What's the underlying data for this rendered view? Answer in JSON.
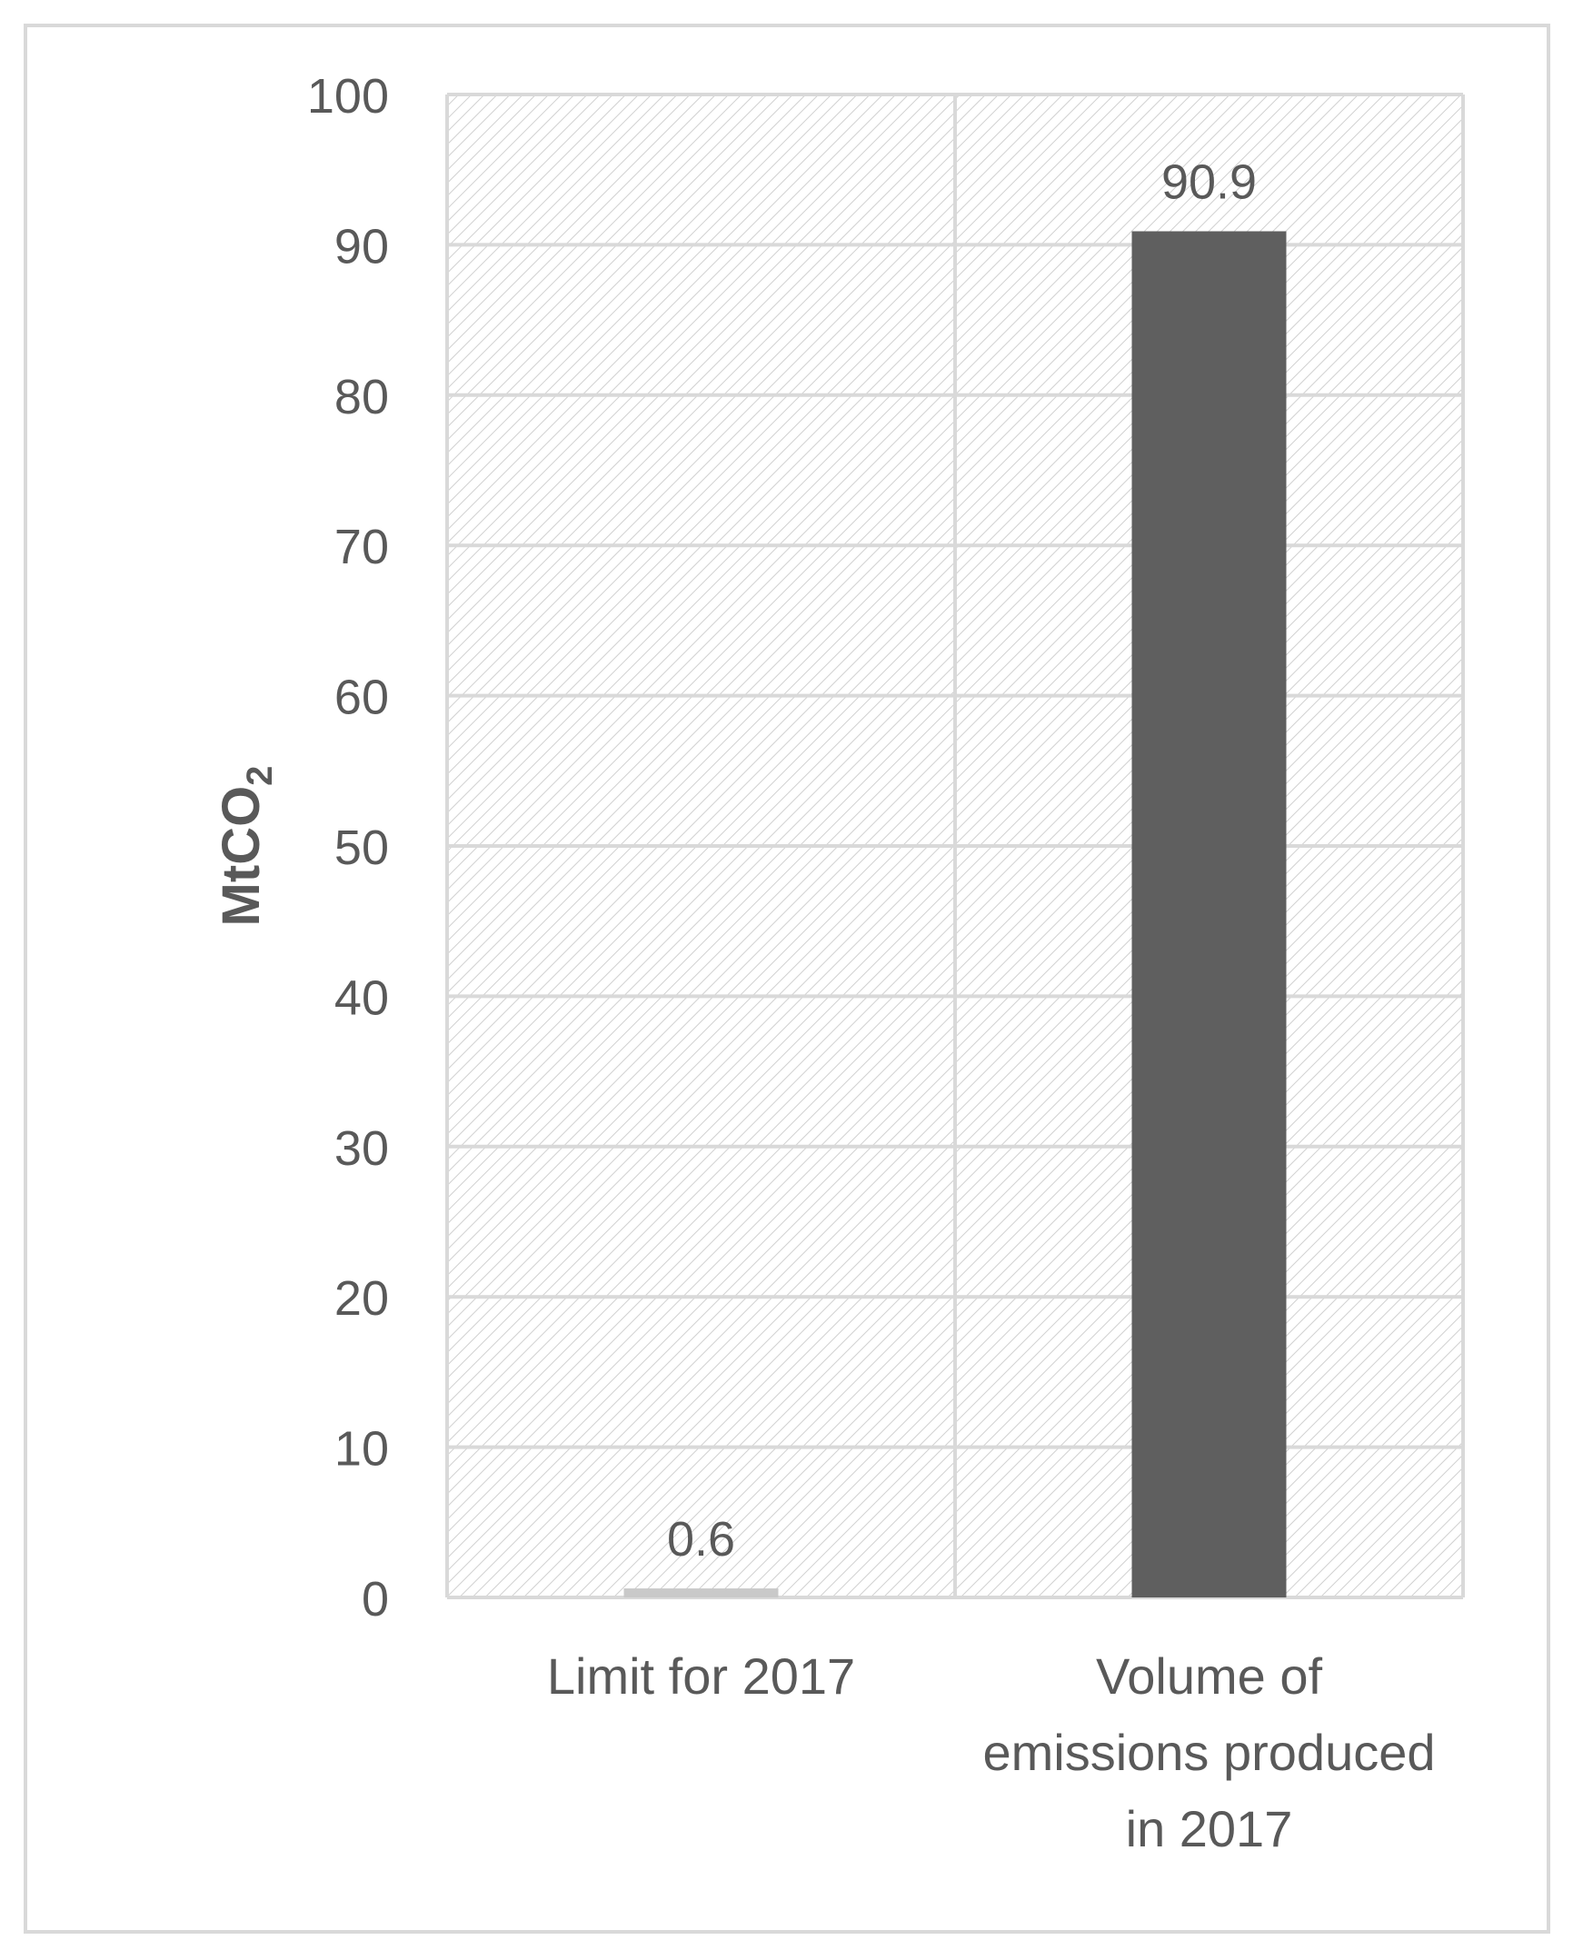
{
  "chart_data": {
    "type": "bar",
    "categories": [
      "Limit for 2017",
      [
        "Volume of",
        "emissions produced",
        "in 2017"
      ]
    ],
    "values": [
      0.6,
      90.9
    ],
    "data_labels": [
      "0.6",
      "90.9"
    ],
    "ylabel": {
      "main": "MtCO",
      "subscript": "2"
    },
    "ylim": [
      0,
      100
    ],
    "yticks": [
      0,
      10,
      20,
      30,
      40,
      50,
      60,
      70,
      80,
      90,
      100
    ],
    "grid": true,
    "legend": "none",
    "colors": {
      "bars": [
        "#c9c9c9",
        "#5f5f5f"
      ],
      "grid": "#d9d9d9",
      "hatch": "#d0d0d0",
      "text": "#595959",
      "frame": "#d9d9d9"
    }
  }
}
